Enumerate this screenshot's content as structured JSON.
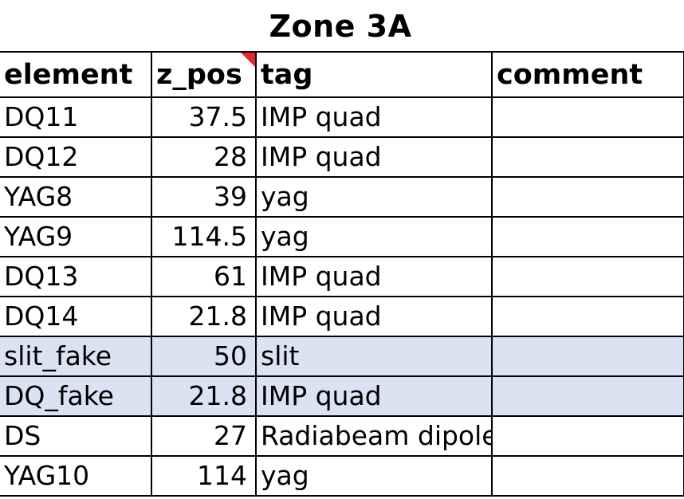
{
  "sheet": {
    "title": "Zone 3A",
    "columns": [
      "element",
      "z_pos",
      "tag",
      "comment"
    ],
    "rows": [
      {
        "element": "DQ11",
        "z_pos": "37.5",
        "tag": "IMP quad",
        "comment": "",
        "highlight": false
      },
      {
        "element": "DQ12",
        "z_pos": "28",
        "tag": "IMP quad",
        "comment": "",
        "highlight": false
      },
      {
        "element": "YAG8",
        "z_pos": "39",
        "tag": "yag",
        "comment": "",
        "highlight": false
      },
      {
        "element": "YAG9",
        "z_pos": "114.5",
        "tag": "yag",
        "comment": "",
        "highlight": false
      },
      {
        "element": "DQ13",
        "z_pos": "61",
        "tag": "IMP quad",
        "comment": "",
        "highlight": false
      },
      {
        "element": "DQ14",
        "z_pos": "21.8",
        "tag": "IMP quad",
        "comment": "",
        "highlight": false
      },
      {
        "element": "slit_fake",
        "z_pos": "50",
        "tag": "slit",
        "comment": "",
        "highlight": true
      },
      {
        "element": "DQ_fake",
        "z_pos": "21.8",
        "tag": "IMP quad",
        "comment": "",
        "highlight": true
      },
      {
        "element": "DS",
        "z_pos": "27",
        "tag": "Radiabeam dipole",
        "comment": "",
        "highlight": false
      },
      {
        "element": "YAG10",
        "z_pos": "114",
        "tag": "yag",
        "comment": "",
        "highlight": false
      }
    ],
    "highlight_color": "#dbe3f3",
    "comment_marker_color": "#e8272a"
  }
}
